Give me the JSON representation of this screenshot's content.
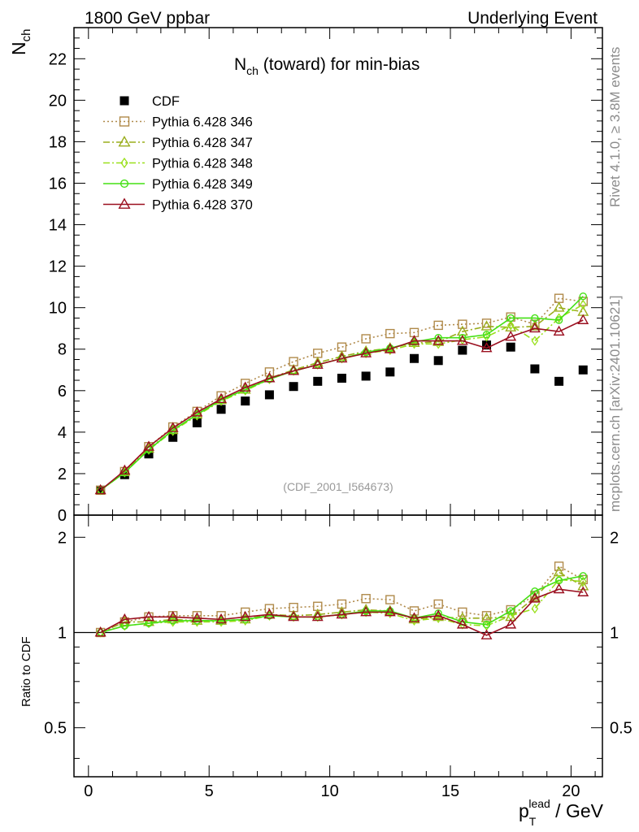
{
  "header": {
    "left": "1800 GeV ppbar",
    "right": "Underlying Event"
  },
  "side_text": {
    "rivet": "Rivet 4.1.0, ≥ 3.8M events",
    "mcplots": "mcplots.cern.ch [arXiv:2401.10621]"
  },
  "chart_data": [
    {
      "type": "line",
      "panel": "main",
      "title": "N_ch (toward) for min-bias",
      "ylabel": "N_ch",
      "xlabel": "",
      "xlim": [
        -0.6,
        21.3
      ],
      "ylim": [
        0,
        23.5
      ],
      "yticks": [
        0,
        2,
        4,
        6,
        8,
        10,
        12,
        14,
        16,
        18,
        20,
        22
      ],
      "grid": false,
      "legend_position": "top-left",
      "watermark": "(CDF_2001_I564673)",
      "x": [
        0.5,
        1.5,
        2.5,
        3.5,
        4.5,
        5.5,
        6.5,
        7.5,
        8.5,
        9.5,
        10.5,
        11.5,
        12.5,
        13.5,
        14.5,
        15.5,
        16.5,
        17.5,
        18.5,
        19.5,
        20.5
      ],
      "series": [
        {
          "name": "CDF",
          "color": "#000000",
          "marker": "square-filled",
          "line": "none",
          "values": [
            1.2,
            1.95,
            2.95,
            3.75,
            4.45,
            5.1,
            5.5,
            5.8,
            6.2,
            6.45,
            6.6,
            6.7,
            6.9,
            7.55,
            7.45,
            7.95,
            8.2,
            8.1,
            7.05,
            6.45,
            7.0
          ]
        },
        {
          "name": "Pythia 6.428 346",
          "color": "#b08a4a",
          "marker": "square-open",
          "line": "dotted",
          "values": [
            1.2,
            2.1,
            3.3,
            4.25,
            5.0,
            5.75,
            6.35,
            6.9,
            7.4,
            7.8,
            8.1,
            8.5,
            8.75,
            8.8,
            9.15,
            9.2,
            9.25,
            9.55,
            9.2,
            10.45,
            10.3
          ]
        },
        {
          "name": "Pythia 6.428 347",
          "color": "#9aad1c",
          "marker": "triangle-open",
          "line": "dashdot",
          "values": [
            1.2,
            2.1,
            3.2,
            4.1,
            4.85,
            5.55,
            6.05,
            6.6,
            7.0,
            7.35,
            7.65,
            7.9,
            8.05,
            8.3,
            8.35,
            8.85,
            9.1,
            9.05,
            9.1,
            10.0,
            9.8
          ]
        },
        {
          "name": "Pythia 6.428 348",
          "color": "#9ae01c",
          "marker": "diamond-open",
          "line": "dashdot",
          "values": [
            1.2,
            2.05,
            3.15,
            4.05,
            4.8,
            5.5,
            6.0,
            6.55,
            6.95,
            7.25,
            7.55,
            7.8,
            7.95,
            8.25,
            8.25,
            8.45,
            8.6,
            9.15,
            8.4,
            9.5,
            10.15
          ]
        },
        {
          "name": "Pythia 6.428 349",
          "color": "#44e014",
          "marker": "circle-open",
          "line": "solid",
          "values": [
            1.2,
            2.05,
            3.15,
            4.1,
            4.85,
            5.55,
            6.05,
            6.55,
            6.95,
            7.25,
            7.55,
            7.85,
            8.05,
            8.35,
            8.55,
            8.55,
            8.7,
            9.5,
            9.5,
            9.4,
            10.55
          ]
        },
        {
          "name": "Pythia 6.428 370",
          "color": "#9a0f1f",
          "marker": "triangle-open",
          "line": "solid",
          "values": [
            1.2,
            2.15,
            3.3,
            4.2,
            4.95,
            5.6,
            6.15,
            6.6,
            6.95,
            7.25,
            7.55,
            7.8,
            8.0,
            8.4,
            8.4,
            8.4,
            8.05,
            8.6,
            9.0,
            8.85,
            9.4
          ]
        }
      ]
    },
    {
      "type": "line",
      "panel": "ratio",
      "ylabel": "Ratio to CDF",
      "xlabel": "p_T^lead / GeV",
      "xlim": [
        -0.6,
        21.3
      ],
      "ylim": [
        0.35,
        2.35
      ],
      "ylog": true,
      "yticks": [
        0.5,
        1,
        2
      ],
      "xticks": [
        0,
        5,
        10,
        15,
        20
      ],
      "reference_line": 1,
      "x": [
        0.5,
        1.5,
        2.5,
        3.5,
        4.5,
        5.5,
        6.5,
        7.5,
        8.5,
        9.5,
        10.5,
        11.5,
        12.5,
        13.5,
        14.5,
        15.5,
        16.5,
        17.5,
        18.5,
        19.5,
        20.5
      ],
      "series": [
        {
          "name": "Pythia 6.428 346",
          "values": [
            1.0,
            1.08,
            1.12,
            1.13,
            1.13,
            1.13,
            1.16,
            1.19,
            1.2,
            1.21,
            1.23,
            1.28,
            1.27,
            1.17,
            1.23,
            1.16,
            1.13,
            1.18,
            1.31,
            1.62,
            1.47
          ]
        },
        {
          "name": "Pythia 6.428 347",
          "values": [
            1.0,
            1.08,
            1.08,
            1.1,
            1.09,
            1.09,
            1.1,
            1.14,
            1.13,
            1.14,
            1.16,
            1.18,
            1.17,
            1.1,
            1.12,
            1.11,
            1.11,
            1.12,
            1.29,
            1.55,
            1.4
          ]
        },
        {
          "name": "Pythia 6.428 348",
          "values": [
            1.0,
            1.05,
            1.07,
            1.08,
            1.08,
            1.08,
            1.09,
            1.13,
            1.12,
            1.12,
            1.14,
            1.16,
            1.15,
            1.09,
            1.11,
            1.06,
            1.05,
            1.13,
            1.19,
            1.47,
            1.45
          ]
        },
        {
          "name": "Pythia 6.428 349",
          "values": [
            1.0,
            1.05,
            1.07,
            1.09,
            1.09,
            1.09,
            1.1,
            1.13,
            1.12,
            1.12,
            1.14,
            1.17,
            1.17,
            1.11,
            1.15,
            1.08,
            1.06,
            1.17,
            1.35,
            1.46,
            1.51
          ]
        },
        {
          "name": "Pythia 6.428 370",
          "values": [
            1.0,
            1.1,
            1.12,
            1.12,
            1.11,
            1.1,
            1.12,
            1.14,
            1.12,
            1.12,
            1.14,
            1.16,
            1.16,
            1.11,
            1.13,
            1.06,
            0.98,
            1.06,
            1.28,
            1.37,
            1.34
          ]
        }
      ]
    }
  ]
}
